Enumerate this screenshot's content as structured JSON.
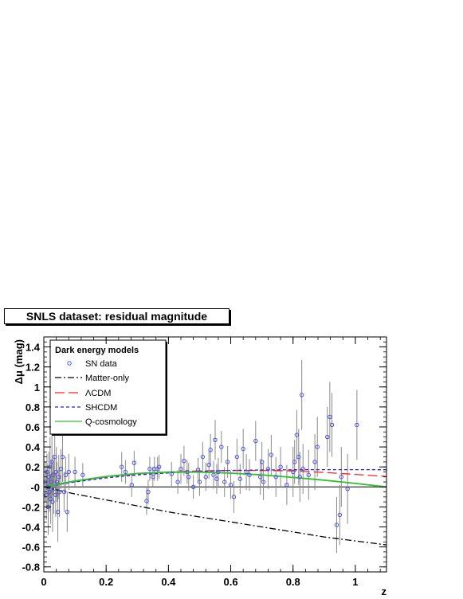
{
  "chart_data": {
    "type": "scatter",
    "title": "SNLS dataset: residual magnitude",
    "xlabel": "z",
    "ylabel": "Δμ (mag)",
    "xlim": [
      0,
      1.1
    ],
    "ylim": [
      -0.85,
      1.5
    ],
    "x_ticks": [
      0,
      0.2,
      0.4,
      0.6,
      0.8,
      1
    ],
    "x_tick_labels": [
      "0",
      "0.2",
      "0.4",
      "0.6",
      "0.8",
      "1"
    ],
    "y_ticks": [
      -0.8,
      -0.6,
      -0.4,
      -0.2,
      0,
      0.2,
      0.4,
      0.6,
      0.8,
      1,
      1.2,
      1.4
    ],
    "y_tick_labels": [
      "-0.8",
      "-0.6",
      "-0.4",
      "-0.2",
      "-0",
      "0.2",
      "0.4",
      "0.6",
      "0.8",
      "1",
      "1.2",
      "1.4"
    ],
    "grid": false,
    "legend": {
      "title": "Dark energy models",
      "placement": "top-left",
      "entries": [
        "SN data",
        "Matter-only",
        "ΛCDM",
        "SHCDM",
        "Q-cosmology"
      ]
    },
    "scatter_series": {
      "name": "SN data",
      "color": "#5050e0",
      "points": [
        {
          "x": 0.005,
          "y": 0.05,
          "err": 0.2
        },
        {
          "x": 0.008,
          "y": -0.08,
          "err": 0.25
        },
        {
          "x": 0.01,
          "y": 0.15,
          "err": 0.18
        },
        {
          "x": 0.012,
          "y": 0.0,
          "err": 0.22
        },
        {
          "x": 0.014,
          "y": -0.2,
          "err": 0.28
        },
        {
          "x": 0.016,
          "y": 0.1,
          "err": 0.25
        },
        {
          "x": 0.018,
          "y": -0.05,
          "err": 0.2
        },
        {
          "x": 0.02,
          "y": 0.2,
          "err": 0.3
        },
        {
          "x": 0.022,
          "y": -0.12,
          "err": 0.25
        },
        {
          "x": 0.024,
          "y": 0.05,
          "err": 0.22
        },
        {
          "x": 0.026,
          "y": 0.25,
          "err": 0.35
        },
        {
          "x": 0.028,
          "y": -0.15,
          "err": 0.3
        },
        {
          "x": 0.03,
          "y": 0.12,
          "err": 0.2
        },
        {
          "x": 0.032,
          "y": -0.02,
          "err": 0.25
        },
        {
          "x": 0.035,
          "y": 0.3,
          "err": 0.3
        },
        {
          "x": 0.038,
          "y": -0.08,
          "err": 0.22
        },
        {
          "x": 0.04,
          "y": 0.15,
          "err": 0.25
        },
        {
          "x": 0.042,
          "y": 0.05,
          "err": 0.2
        },
        {
          "x": 0.045,
          "y": -0.25,
          "err": 0.3
        },
        {
          "x": 0.048,
          "y": 0.1,
          "err": 0.22
        },
        {
          "x": 0.05,
          "y": -0.05,
          "err": 0.25
        },
        {
          "x": 0.055,
          "y": 0.18,
          "err": 0.2
        },
        {
          "x": 0.06,
          "y": 0.3,
          "err": 0.25
        },
        {
          "x": 0.065,
          "y": -0.05,
          "err": 0.2
        },
        {
          "x": 0.07,
          "y": 0.12,
          "err": 0.18
        },
        {
          "x": 0.075,
          "y": -0.25,
          "err": 0.2
        },
        {
          "x": 0.08,
          "y": 0.15,
          "err": 0.18
        },
        {
          "x": 0.1,
          "y": 0.15,
          "err": 0.15
        },
        {
          "x": 0.125,
          "y": 0.12,
          "err": 0.12
        },
        {
          "x": 0.25,
          "y": 0.2,
          "err": 0.15
        },
        {
          "x": 0.262,
          "y": 0.15,
          "err": 0.12
        },
        {
          "x": 0.282,
          "y": 0.02,
          "err": 0.12
        },
        {
          "x": 0.29,
          "y": 0.24,
          "err": 0.12
        },
        {
          "x": 0.33,
          "y": -0.14,
          "err": 0.14
        },
        {
          "x": 0.335,
          "y": -0.05,
          "err": 0.12
        },
        {
          "x": 0.34,
          "y": 0.18,
          "err": 0.12
        },
        {
          "x": 0.35,
          "y": 0.1,
          "err": 0.1
        },
        {
          "x": 0.355,
          "y": 0.18,
          "err": 0.12
        },
        {
          "x": 0.365,
          "y": 0.18,
          "err": 0.12
        },
        {
          "x": 0.37,
          "y": 0.2,
          "err": 0.12
        },
        {
          "x": 0.41,
          "y": 0.13,
          "err": 0.12
        },
        {
          "x": 0.43,
          "y": 0.05,
          "err": 0.12
        },
        {
          "x": 0.44,
          "y": 0.18,
          "err": 0.15
        },
        {
          "x": 0.45,
          "y": 0.26,
          "err": 0.15
        },
        {
          "x": 0.46,
          "y": 0.15,
          "err": 0.12
        },
        {
          "x": 0.465,
          "y": 0.1,
          "err": 0.14
        },
        {
          "x": 0.48,
          "y": 0.0,
          "err": 0.12
        },
        {
          "x": 0.495,
          "y": 0.17,
          "err": 0.12
        },
        {
          "x": 0.5,
          "y": 0.05,
          "err": 0.14
        },
        {
          "x": 0.51,
          "y": 0.3,
          "err": 0.15
        },
        {
          "x": 0.52,
          "y": 0.1,
          "err": 0.14
        },
        {
          "x": 0.53,
          "y": 0.22,
          "err": 0.14
        },
        {
          "x": 0.535,
          "y": 0.37,
          "err": 0.16
        },
        {
          "x": 0.545,
          "y": 0.12,
          "err": 0.14
        },
        {
          "x": 0.55,
          "y": 0.47,
          "err": 0.2
        },
        {
          "x": 0.555,
          "y": 0.08,
          "err": 0.15
        },
        {
          "x": 0.56,
          "y": 0.15,
          "err": 0.14
        },
        {
          "x": 0.57,
          "y": 0.4,
          "err": 0.16
        },
        {
          "x": 0.58,
          "y": 0.05,
          "err": 0.15
        },
        {
          "x": 0.59,
          "y": 0.25,
          "err": 0.16
        },
        {
          "x": 0.6,
          "y": 0.02,
          "err": 0.14
        },
        {
          "x": 0.61,
          "y": -0.1,
          "err": 0.16
        },
        {
          "x": 0.62,
          "y": 0.3,
          "err": 0.18
        },
        {
          "x": 0.63,
          "y": 0.08,
          "err": 0.15
        },
        {
          "x": 0.64,
          "y": 0.38,
          "err": 0.2
        },
        {
          "x": 0.65,
          "y": 0.15,
          "err": 0.18
        },
        {
          "x": 0.66,
          "y": 0.12,
          "err": 0.16
        },
        {
          "x": 0.68,
          "y": 0.46,
          "err": 0.2
        },
        {
          "x": 0.695,
          "y": 0.1,
          "err": 0.18
        },
        {
          "x": 0.7,
          "y": 0.25,
          "err": 0.2
        },
        {
          "x": 0.705,
          "y": 0.05,
          "err": 0.18
        },
        {
          "x": 0.72,
          "y": 0.18,
          "err": 0.2
        },
        {
          "x": 0.73,
          "y": 0.32,
          "err": 0.2
        },
        {
          "x": 0.745,
          "y": 0.1,
          "err": 0.2
        },
        {
          "x": 0.76,
          "y": 0.2,
          "err": 0.2
        },
        {
          "x": 0.78,
          "y": 0.02,
          "err": 0.2
        },
        {
          "x": 0.8,
          "y": 0.15,
          "err": 0.25
        },
        {
          "x": 0.805,
          "y": 0.25,
          "err": 0.22
        },
        {
          "x": 0.812,
          "y": 0.52,
          "err": 0.25
        },
        {
          "x": 0.818,
          "y": 0.3,
          "err": 0.28
        },
        {
          "x": 0.822,
          "y": 0.1,
          "err": 0.25
        },
        {
          "x": 0.828,
          "y": 0.92,
          "err": 0.35
        },
        {
          "x": 0.832,
          "y": 0.18,
          "err": 0.25
        },
        {
          "x": 0.85,
          "y": 0.12,
          "err": 0.25
        },
        {
          "x": 0.87,
          "y": 0.25,
          "err": 0.28
        },
        {
          "x": 0.878,
          "y": 0.4,
          "err": 0.3
        },
        {
          "x": 0.91,
          "y": 0.5,
          "err": 0.3
        },
        {
          "x": 0.918,
          "y": 0.7,
          "err": 0.35
        },
        {
          "x": 0.925,
          "y": 0.62,
          "err": 0.32
        },
        {
          "x": 0.94,
          "y": -0.38,
          "err": 0.28
        },
        {
          "x": 0.95,
          "y": -0.28,
          "err": 0.3
        },
        {
          "x": 0.955,
          "y": 0.1,
          "err": 0.3
        },
        {
          "x": 0.975,
          "y": -0.02,
          "err": 0.35
        },
        {
          "x": 1.005,
          "y": 0.62,
          "err": 0.35
        }
      ]
    },
    "line_series": [
      {
        "name": "Matter-only",
        "color": "#000000",
        "dash": "8,3,2,3",
        "x": [
          0,
          0.1,
          0.2,
          0.3,
          0.4,
          0.5,
          0.6,
          0.7,
          0.8,
          0.9,
          1.0,
          1.1
        ],
        "y": [
          0,
          -0.07,
          -0.13,
          -0.19,
          -0.25,
          -0.3,
          -0.35,
          -0.4,
          -0.45,
          -0.5,
          -0.54,
          -0.58
        ]
      },
      {
        "name": "ΛCDM",
        "color": "#ff2020",
        "dash": "12,5",
        "x": [
          0,
          0.1,
          0.2,
          0.3,
          0.4,
          0.5,
          0.6,
          0.7,
          0.8,
          0.9,
          1.0,
          1.1
        ],
        "y": [
          0,
          0.055,
          0.1,
          0.13,
          0.15,
          0.16,
          0.165,
          0.165,
          0.16,
          0.145,
          0.125,
          0.105
        ]
      },
      {
        "name": "SHCDM",
        "color": "#2020e0",
        "dash": "4,3",
        "x": [
          0,
          0.1,
          0.2,
          0.3,
          0.4,
          0.5,
          0.6,
          0.7,
          0.8,
          0.9,
          1.0,
          1.1
        ],
        "y": [
          0,
          0.05,
          0.09,
          0.12,
          0.14,
          0.155,
          0.165,
          0.17,
          0.172,
          0.173,
          0.173,
          0.172
        ]
      },
      {
        "name": "Q-cosmology",
        "color": "#30c030",
        "dash": "",
        "x": [
          0,
          0.1,
          0.2,
          0.3,
          0.4,
          0.5,
          0.6,
          0.7,
          0.8,
          0.9,
          1.0,
          1.1
        ],
        "y": [
          0,
          0.06,
          0.105,
          0.135,
          0.148,
          0.148,
          0.138,
          0.12,
          0.095,
          0.068,
          0.035,
          0.0
        ]
      }
    ]
  }
}
